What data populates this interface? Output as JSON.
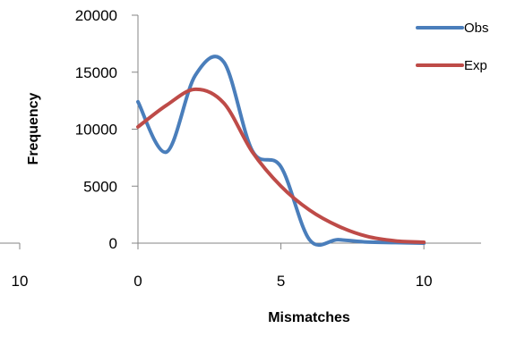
{
  "chart_data": {
    "type": "line",
    "xlabel": "Mismatches",
    "ylabel": "Frequency",
    "xlim": [
      0,
      12
    ],
    "ylim": [
      0,
      20000
    ],
    "x_ticks": [
      0,
      5,
      10
    ],
    "y_ticks": [
      0,
      5000,
      10000,
      15000,
      20000
    ],
    "x_tick_labels": [
      "0",
      "5",
      "10"
    ],
    "y_tick_labels": [
      "0",
      "5000",
      "10000",
      "15000",
      "20000"
    ],
    "grid": false,
    "smoothed": true,
    "legend_position": "top-right",
    "series": [
      {
        "name": "Obs",
        "color": "#4a7ebb",
        "x": [
          0,
          1,
          2,
          3,
          4,
          5,
          6,
          7,
          8,
          9,
          10
        ],
        "y": [
          12400,
          8000,
          14700,
          15900,
          8100,
          6700,
          300,
          300,
          100,
          50,
          0
        ]
      },
      {
        "name": "Exp",
        "color": "#be4b48",
        "x": [
          0,
          1,
          2,
          3,
          4,
          5,
          6,
          7,
          8,
          9,
          10
        ],
        "y": [
          10200,
          12100,
          13500,
          12300,
          8000,
          5000,
          2900,
          1500,
          600,
          200,
          80
        ]
      }
    ],
    "partial_left_panel": {
      "x_tick_labels": [
        "10"
      ]
    }
  }
}
